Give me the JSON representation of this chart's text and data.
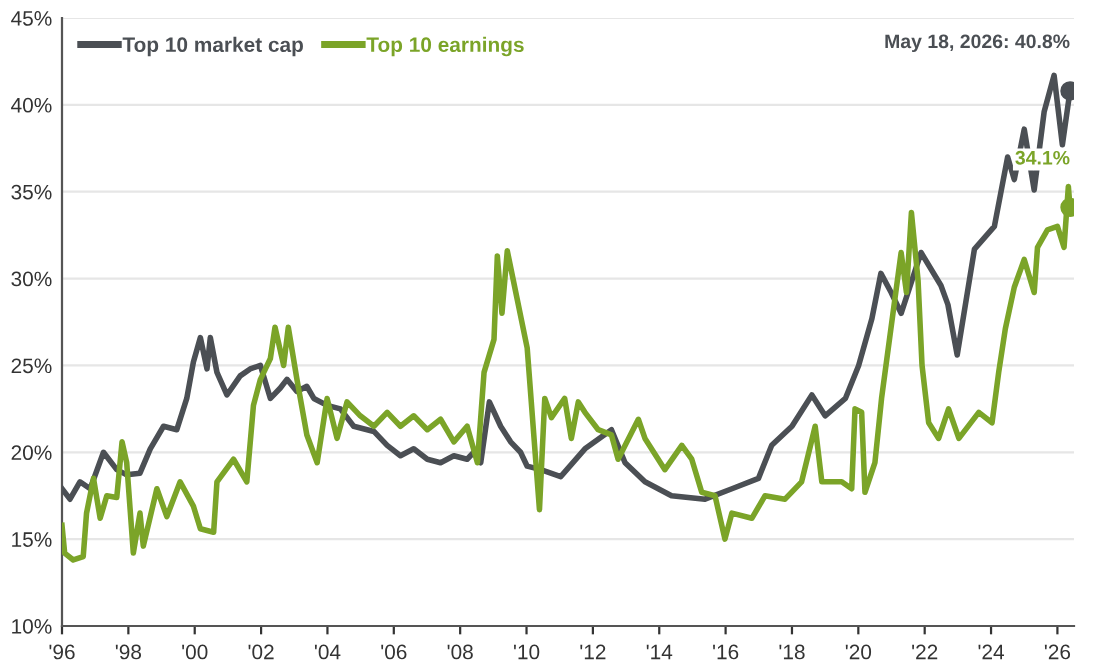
{
  "chart_data": {
    "type": "line",
    "xlim": [
      1996,
      2026.5
    ],
    "ylim": [
      10,
      45
    ],
    "xticks": [
      {
        "value": 1996,
        "label": "'96"
      },
      {
        "value": 1998,
        "label": "'98"
      },
      {
        "value": 2000,
        "label": "'00"
      },
      {
        "value": 2002,
        "label": "'02"
      },
      {
        "value": 2004,
        "label": "'04"
      },
      {
        "value": 2006,
        "label": "'06"
      },
      {
        "value": 2008,
        "label": "'08"
      },
      {
        "value": 2010,
        "label": "'10"
      },
      {
        "value": 2012,
        "label": "'12"
      },
      {
        "value": 2014,
        "label": "'14"
      },
      {
        "value": 2016,
        "label": "'16"
      },
      {
        "value": 2018,
        "label": "'18"
      },
      {
        "value": 2020,
        "label": "'20"
      },
      {
        "value": 2022,
        "label": "'22"
      },
      {
        "value": 2024,
        "label": "'24"
      },
      {
        "value": 2026,
        "label": "'26"
      }
    ],
    "yticks": [
      {
        "value": 10,
        "label": "10%"
      },
      {
        "value": 15,
        "label": "15%"
      },
      {
        "value": 20,
        "label": "20%"
      },
      {
        "value": 25,
        "label": "25%"
      },
      {
        "value": 30,
        "label": "30%"
      },
      {
        "value": 35,
        "label": "35%"
      },
      {
        "value": 40,
        "label": "40%"
      },
      {
        "value": 45,
        "label": "45%"
      }
    ],
    "grid": "y",
    "legend": "top left",
    "line_style": "solid",
    "marker": "none",
    "series": [
      {
        "name": "Top 10 market cap",
        "color": "#4b4f54",
        "x": [
          1996.0,
          1996.24,
          1996.54,
          1996.85,
          1997.25,
          1997.65,
          1997.95,
          1998.35,
          1998.66,
          1999.06,
          1999.46,
          1999.76,
          1999.96,
          2000.17,
          2000.37,
          2000.47,
          2000.67,
          2000.97,
          2001.37,
          2001.67,
          2001.98,
          2002.28,
          2002.58,
          2002.78,
          2003.08,
          2003.38,
          2003.59,
          2003.99,
          2004.39,
          2004.79,
          2005.4,
          2005.8,
          2006.2,
          2006.6,
          2007.01,
          2007.41,
          2007.81,
          2008.21,
          2008.41,
          2008.62,
          2008.88,
          2009.22,
          2009.52,
          2009.82,
          2010.02,
          2010.43,
          2011.03,
          2011.76,
          2012.56,
          2012.97,
          2013.57,
          2014.37,
          2015.38,
          2016.19,
          2016.99,
          2017.39,
          2018.0,
          2018.6,
          2019.0,
          2019.61,
          2020.01,
          2020.41,
          2020.68,
          2020.99,
          2021.29,
          2021.89,
          2022.49,
          2022.7,
          2022.98,
          2023.5,
          2024.1,
          2024.5,
          2024.7,
          2025.0,
          2025.3,
          2025.6,
          2025.9,
          2026.15,
          2026.38
        ],
        "values": [
          17.9,
          17.3,
          18.3,
          17.9,
          20.0,
          19.0,
          18.7,
          18.8,
          20.2,
          21.5,
          21.3,
          23.1,
          25.2,
          26.6,
          24.8,
          26.6,
          24.6,
          23.3,
          24.4,
          24.8,
          25.0,
          23.1,
          23.7,
          24.2,
          23.5,
          23.8,
          23.1,
          22.7,
          22.5,
          21.5,
          21.2,
          20.4,
          19.8,
          20.2,
          19.6,
          19.4,
          19.8,
          19.6,
          20.0,
          19.4,
          22.9,
          21.5,
          20.6,
          20.0,
          19.2,
          19.0,
          18.6,
          20.2,
          21.3,
          19.4,
          18.3,
          17.5,
          17.3,
          17.9,
          18.5,
          20.4,
          21.5,
          23.3,
          22.1,
          23.1,
          25.0,
          27.7,
          30.3,
          29.2,
          28.0,
          31.5,
          29.6,
          28.5,
          25.6,
          31.7,
          33.0,
          37.0,
          35.7,
          38.6,
          35.1,
          39.6,
          41.7,
          37.7,
          40.8
        ]
      },
      {
        "name": "Top 10 earnings",
        "color": "#7ba428",
        "x": [
          1996.0,
          1996.08,
          1996.34,
          1996.64,
          1996.74,
          1996.95,
          1997.15,
          1997.35,
          1997.65,
          1997.81,
          1997.95,
          1998.15,
          1998.35,
          1998.45,
          1998.86,
          1999.16,
          1999.56,
          1999.96,
          2000.17,
          2000.57,
          2000.67,
          2001.17,
          2001.57,
          2001.77,
          2001.98,
          2002.28,
          2002.42,
          2002.68,
          2002.82,
          2003.08,
          2003.38,
          2003.69,
          2003.99,
          2004.29,
          2004.59,
          2004.99,
          2005.4,
          2005.8,
          2006.2,
          2006.6,
          2007.01,
          2007.41,
          2007.81,
          2008.21,
          2008.52,
          2008.72,
          2009.02,
          2009.12,
          2009.26,
          2009.42,
          2009.72,
          2010.02,
          2010.39,
          2010.55,
          2010.75,
          2011.15,
          2011.35,
          2011.56,
          2011.76,
          2012.16,
          2012.56,
          2012.76,
          2013.37,
          2013.57,
          2014.17,
          2014.68,
          2014.98,
          2015.28,
          2015.68,
          2015.98,
          2016.19,
          2016.79,
          2017.19,
          2017.79,
          2018.29,
          2018.7,
          2018.9,
          2019.5,
          2019.8,
          2019.9,
          2020.1,
          2020.2,
          2020.5,
          2020.7,
          2021.29,
          2021.45,
          2021.6,
          2021.8,
          2021.92,
          2022.12,
          2022.42,
          2022.72,
          2023.03,
          2023.63,
          2024.03,
          2024.23,
          2024.43,
          2024.7,
          2025.0,
          2025.3,
          2025.4,
          2025.7,
          2026.0,
          2026.2,
          2026.33,
          2026.38
        ],
        "values": [
          15.8,
          14.2,
          13.8,
          14.0,
          16.5,
          18.5,
          16.2,
          17.5,
          17.4,
          20.6,
          19.4,
          14.2,
          16.5,
          14.6,
          17.9,
          16.3,
          18.3,
          16.9,
          15.6,
          15.4,
          18.3,
          19.6,
          18.3,
          22.7,
          24.2,
          25.4,
          27.2,
          25.0,
          27.2,
          24.2,
          21.0,
          19.4,
          23.1,
          20.8,
          22.9,
          22.1,
          21.5,
          22.3,
          21.5,
          22.1,
          21.3,
          21.9,
          20.6,
          21.5,
          19.4,
          24.6,
          26.5,
          31.3,
          28.0,
          31.6,
          28.8,
          26.0,
          16.7,
          23.1,
          22.0,
          23.1,
          20.8,
          22.9,
          22.3,
          21.3,
          21.0,
          19.6,
          21.9,
          20.8,
          19.0,
          20.4,
          19.6,
          17.7,
          17.5,
          15.0,
          16.5,
          16.2,
          17.5,
          17.3,
          18.3,
          21.5,
          18.3,
          18.3,
          17.9,
          22.5,
          22.3,
          17.7,
          19.4,
          23.1,
          31.5,
          29.2,
          33.8,
          29.9,
          25.0,
          21.7,
          20.8,
          22.5,
          20.8,
          22.3,
          21.7,
          24.6,
          27.1,
          29.5,
          31.1,
          29.2,
          31.8,
          32.8,
          33.0,
          31.8,
          35.3,
          34.1
        ]
      }
    ],
    "annotations": [
      {
        "text": "May 18, 2026: 40.8%",
        "x": 2026.38,
        "y": 40.8
      },
      {
        "text": "34.1%",
        "x": 2026.38,
        "y": 34.1
      }
    ]
  }
}
